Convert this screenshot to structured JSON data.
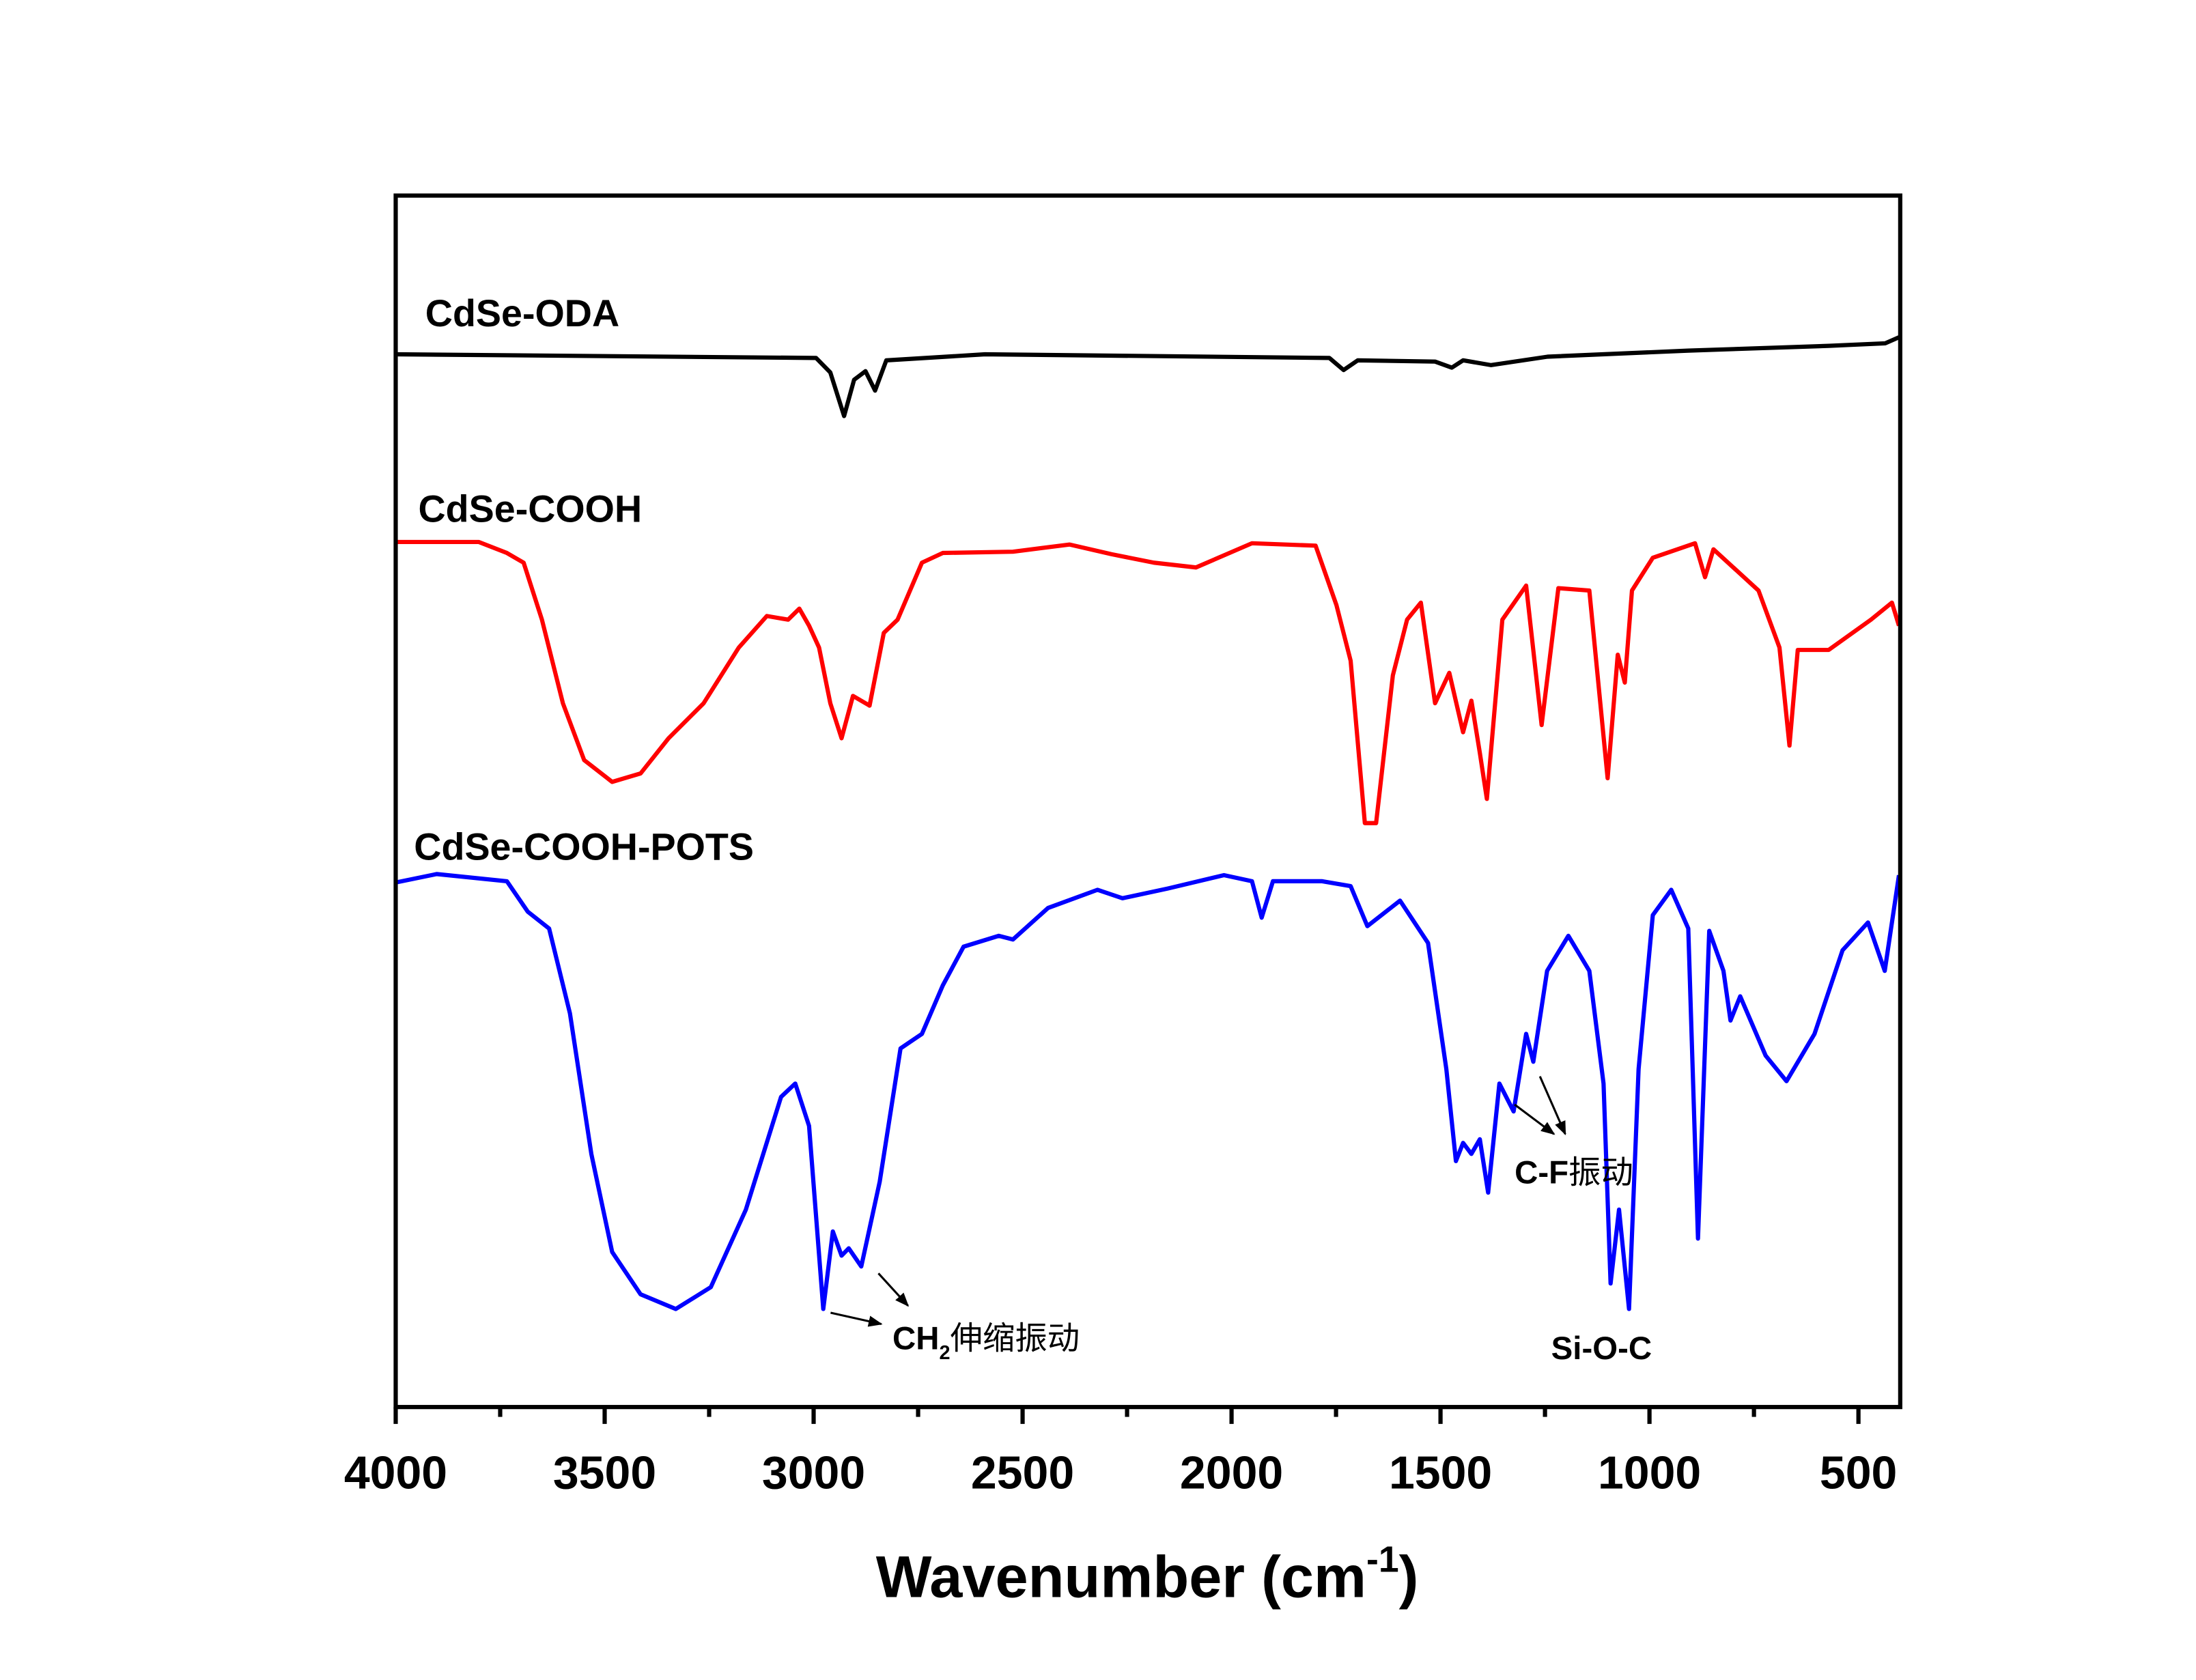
{
  "chart_data": {
    "type": "line",
    "title": "",
    "xlabel": "Wavenumber (cm",
    "xlabel_sup": "-1",
    "xlabel_end": ")",
    "ylabel": "",
    "xlim": [
      4000,
      400
    ],
    "ylim": [
      0,
      100
    ],
    "grid": false,
    "x_ticks": [
      4000,
      3500,
      3000,
      2500,
      2000,
      1500,
      1000,
      500
    ],
    "x_tick_labels": [
      "4000",
      "3500",
      "3000",
      "2500",
      "2000",
      "1500",
      "1000",
      "500"
    ],
    "series": [
      {
        "name": "CdSe-ODA",
        "color": "#000000",
        "points": [
          [
            4000,
            86.9
          ],
          [
            2994,
            86.6
          ],
          [
            2960,
            85.4
          ],
          [
            2927,
            81.8
          ],
          [
            2903,
            84.8
          ],
          [
            2876,
            85.5
          ],
          [
            2853,
            83.9
          ],
          [
            2826,
            86.4
          ],
          [
            2590,
            86.9
          ],
          [
            1766,
            86.6
          ],
          [
            1732,
            85.6
          ],
          [
            1698,
            86.4
          ],
          [
            1513,
            86.3
          ],
          [
            1473,
            85.8
          ],
          [
            1446,
            86.4
          ],
          [
            1379,
            86.0
          ],
          [
            1244,
            86.7
          ],
          [
            907,
            87.2
          ],
          [
            571,
            87.6
          ],
          [
            436,
            87.8
          ],
          [
            403,
            88.3
          ]
        ]
      },
      {
        "name": "CdSe-COOH",
        "color": "#ff0000",
        "points": [
          [
            4000,
            71.4
          ],
          [
            3801,
            71.4
          ],
          [
            3734,
            70.5
          ],
          [
            3694,
            69.7
          ],
          [
            3650,
            65.0
          ],
          [
            3600,
            58.1
          ],
          [
            3549,
            53.4
          ],
          [
            3482,
            51.6
          ],
          [
            3414,
            52.3
          ],
          [
            3347,
            55.2
          ],
          [
            3263,
            58.1
          ],
          [
            3179,
            62.7
          ],
          [
            3112,
            65.3
          ],
          [
            3061,
            65.0
          ],
          [
            3034,
            65.9
          ],
          [
            3011,
            64.5
          ],
          [
            2987,
            62.7
          ],
          [
            2960,
            58.1
          ],
          [
            2933,
            55.2
          ],
          [
            2906,
            58.7
          ],
          [
            2866,
            57.9
          ],
          [
            2832,
            63.9
          ],
          [
            2799,
            65.0
          ],
          [
            2741,
            69.7
          ],
          [
            2691,
            70.5
          ],
          [
            2523,
            70.6
          ],
          [
            2388,
            71.2
          ],
          [
            2287,
            70.4
          ],
          [
            2186,
            69.7
          ],
          [
            2085,
            69.3
          ],
          [
            1951,
            71.3
          ],
          [
            1799,
            71.1
          ],
          [
            1749,
            66.2
          ],
          [
            1715,
            61.6
          ],
          [
            1681,
            48.2
          ],
          [
            1654,
            48.2
          ],
          [
            1614,
            60.4
          ],
          [
            1580,
            65.0
          ],
          [
            1547,
            66.4
          ],
          [
            1513,
            58.1
          ],
          [
            1479,
            60.6
          ],
          [
            1446,
            55.7
          ],
          [
            1426,
            58.3
          ],
          [
            1406,
            54.0
          ],
          [
            1389,
            50.2
          ],
          [
            1352,
            65.0
          ],
          [
            1295,
            67.8
          ],
          [
            1258,
            56.3
          ],
          [
            1218,
            67.6
          ],
          [
            1144,
            67.4
          ],
          [
            1100,
            51.9
          ],
          [
            1076,
            62.1
          ],
          [
            1059,
            59.8
          ],
          [
            1042,
            67.4
          ],
          [
            992,
            70.1
          ],
          [
            891,
            71.3
          ],
          [
            867,
            68.5
          ],
          [
            847,
            70.8
          ],
          [
            739,
            67.4
          ],
          [
            689,
            62.7
          ],
          [
            665,
            54.6
          ],
          [
            645,
            62.5
          ],
          [
            571,
            62.5
          ],
          [
            470,
            65.0
          ],
          [
            420,
            66.4
          ],
          [
            403,
            64.5
          ]
        ]
      },
      {
        "name": "CdSe-COOH-POTS",
        "color": "#0000ff",
        "points": [
          [
            4000,
            43.3
          ],
          [
            3902,
            44.0
          ],
          [
            3734,
            43.4
          ],
          [
            3684,
            40.9
          ],
          [
            3633,
            39.5
          ],
          [
            3583,
            32.5
          ],
          [
            3532,
            20.9
          ],
          [
            3482,
            12.8
          ],
          [
            3414,
            9.3
          ],
          [
            3330,
            8.1
          ],
          [
            3246,
            9.9
          ],
          [
            3162,
            16.3
          ],
          [
            3078,
            25.6
          ],
          [
            3044,
            26.7
          ],
          [
            3011,
            23.2
          ],
          [
            2977,
            8.1
          ],
          [
            2954,
            14.5
          ],
          [
            2933,
            12.5
          ],
          [
            2916,
            13.1
          ],
          [
            2886,
            11.6
          ],
          [
            2842,
            18.6
          ],
          [
            2792,
            29.6
          ],
          [
            2741,
            30.8
          ],
          [
            2691,
            34.8
          ],
          [
            2641,
            38.0
          ],
          [
            2557,
            38.9
          ],
          [
            2523,
            38.6
          ],
          [
            2439,
            41.2
          ],
          [
            2321,
            42.7
          ],
          [
            2261,
            42.0
          ],
          [
            2153,
            42.8
          ],
          [
            2018,
            43.9
          ],
          [
            1951,
            43.4
          ],
          [
            1928,
            40.4
          ],
          [
            1901,
            43.4
          ],
          [
            1783,
            43.4
          ],
          [
            1715,
            43.0
          ],
          [
            1675,
            39.7
          ],
          [
            1597,
            41.8
          ],
          [
            1530,
            38.3
          ],
          [
            1486,
            27.9
          ],
          [
            1463,
            20.3
          ],
          [
            1446,
            21.8
          ],
          [
            1426,
            20.9
          ],
          [
            1406,
            22.1
          ],
          [
            1386,
            17.7
          ],
          [
            1359,
            26.7
          ],
          [
            1325,
            24.4
          ],
          [
            1295,
            30.8
          ],
          [
            1278,
            28.5
          ],
          [
            1245,
            36.0
          ],
          [
            1194,
            38.9
          ],
          [
            1144,
            36.0
          ],
          [
            1110,
            26.7
          ],
          [
            1093,
            10.2
          ],
          [
            1073,
            16.3
          ],
          [
            1049,
            8.1
          ],
          [
            1026,
            27.9
          ],
          [
            992,
            40.6
          ],
          [
            948,
            42.7
          ],
          [
            907,
            39.5
          ],
          [
            884,
            13.9
          ],
          [
            857,
            39.3
          ],
          [
            823,
            36.0
          ],
          [
            806,
            31.9
          ],
          [
            783,
            33.9
          ],
          [
            722,
            29.0
          ],
          [
            672,
            26.9
          ],
          [
            605,
            30.8
          ],
          [
            538,
            37.7
          ],
          [
            477,
            40.0
          ],
          [
            437,
            36.0
          ],
          [
            403,
            43.9
          ]
        ]
      }
    ],
    "annotations": {
      "ch2": {
        "main": "CH",
        "sub": "2",
        "rest": "伸缩振动"
      },
      "cf": {
        "main": "C-F",
        "rest": "振动"
      },
      "sioc": {
        "main": "Si-O-C"
      }
    }
  }
}
